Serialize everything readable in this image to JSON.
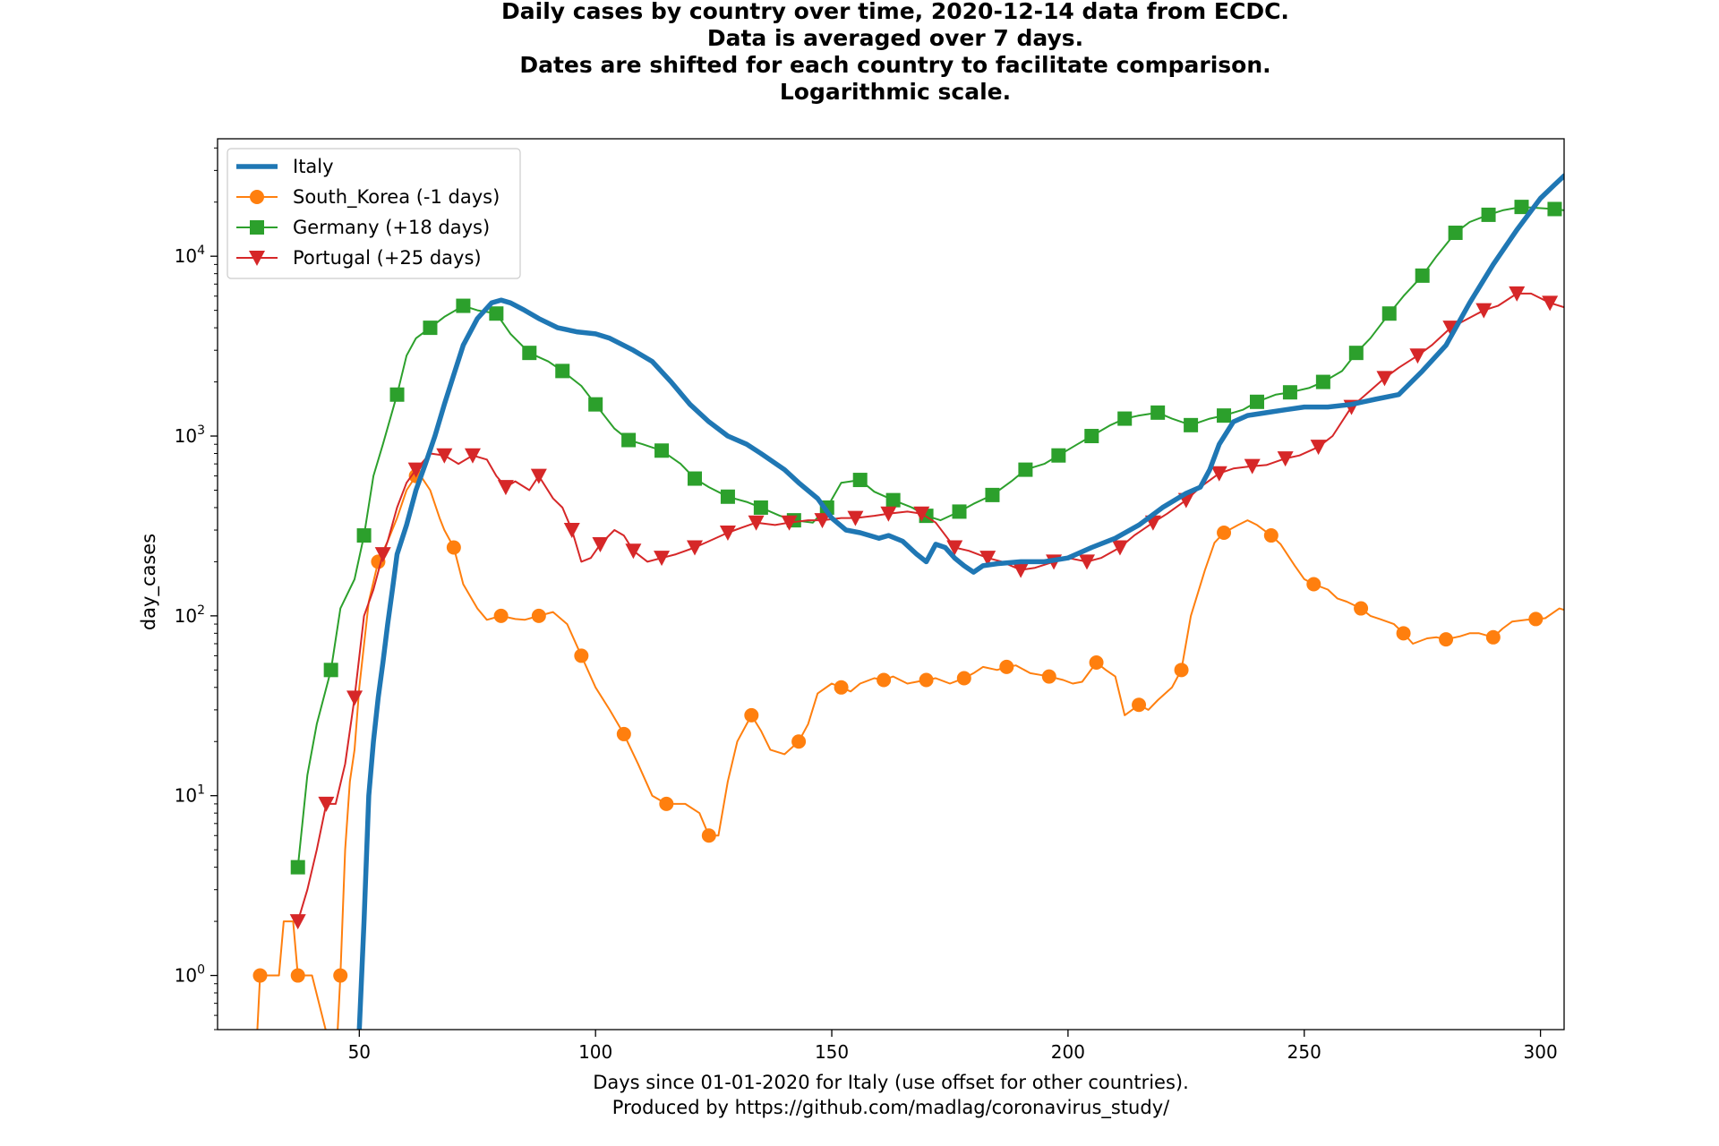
{
  "chart_data": {
    "type": "line",
    "title_lines": [
      "Daily cases by country over time, 2020-12-14 data from ECDC.",
      "Data is averaged over 7 days.",
      "Dates are shifted for each country to facilitate comparison.",
      "Logarithmic scale."
    ],
    "xlabel_lines": [
      "Days since 01-01-2020 for Italy (use offset for other countries).",
      "Produced by https://github.com/madlag/coronavirus_study/"
    ],
    "ylabel": "day_cases",
    "y_scale": "log",
    "xlim": [
      20,
      305
    ],
    "ylim": [
      0.5,
      45000
    ],
    "grid": false,
    "legend_position": "top-left",
    "x_ticks": [
      50,
      100,
      150,
      200,
      250,
      300
    ],
    "y_ticks": [
      {
        "value": 1,
        "base": "10",
        "exp": "0"
      },
      {
        "value": 10,
        "base": "10",
        "exp": "1"
      },
      {
        "value": 100,
        "base": "10",
        "exp": "2"
      },
      {
        "value": 1000,
        "base": "10",
        "exp": "3"
      },
      {
        "value": 10000,
        "base": "10",
        "exp": "4"
      }
    ],
    "series": [
      {
        "name": "Italy",
        "color": "#1f77b4",
        "marker": "none",
        "line_width": "thick",
        "x": [
          50,
          51,
          52,
          53,
          54,
          55,
          56,
          57,
          58,
          60,
          62,
          64,
          66,
          68,
          70,
          72,
          75,
          78,
          80,
          82,
          85,
          88,
          92,
          96,
          100,
          103,
          108,
          112,
          116,
          120,
          124,
          128,
          132,
          135,
          140,
          143,
          147,
          150,
          153,
          156,
          158,
          160,
          162,
          165,
          168,
          170,
          172,
          174,
          176,
          178,
          180,
          182,
          185,
          190,
          195,
          200,
          205,
          210,
          215,
          220,
          225,
          228,
          230,
          232,
          235,
          238,
          242,
          246,
          250,
          255,
          260,
          265,
          270,
          275,
          280,
          285,
          290,
          295,
          300,
          303,
          305
        ],
        "values": [
          0.5,
          2,
          10,
          20,
          35,
          55,
          90,
          140,
          220,
          320,
          500,
          700,
          1000,
          1500,
          2200,
          3200,
          4500,
          5500,
          5700,
          5500,
          5000,
          4500,
          4000,
          3800,
          3700,
          3500,
          3000,
          2600,
          2000,
          1500,
          1200,
          1000,
          900,
          800,
          650,
          550,
          450,
          350,
          300,
          290,
          280,
          270,
          280,
          260,
          220,
          200,
          250,
          240,
          210,
          190,
          175,
          190,
          195,
          200,
          200,
          210,
          240,
          270,
          320,
          400,
          480,
          520,
          650,
          900,
          1200,
          1300,
          1350,
          1400,
          1450,
          1450,
          1500,
          1600,
          1700,
          2300,
          3200,
          5500,
          9000,
          14000,
          21000,
          25000,
          28000
        ]
      },
      {
        "name": "South_Korea (-1 days)",
        "color": "#ff7f0e",
        "marker": "circle",
        "line_width": "thin",
        "x": [
          28,
          29,
          31,
          33,
          34,
          35,
          36,
          37,
          38,
          39,
          40,
          45,
          46,
          47,
          48,
          49,
          50,
          52,
          54,
          56,
          58,
          60,
          62,
          63,
          65,
          67,
          68,
          70,
          72,
          75,
          77,
          80,
          83,
          85,
          88,
          91,
          94,
          97,
          100,
          103,
          106,
          109,
          112,
          115,
          119,
          122,
          124,
          126,
          128,
          130,
          133,
          135,
          137,
          140,
          143,
          145,
          147,
          150,
          152,
          154,
          156,
          159,
          161,
          163,
          166,
          168,
          170,
          172,
          175,
          178,
          180,
          182,
          185,
          187,
          189,
          192,
          194,
          196,
          199,
          201,
          203,
          206,
          208,
          210,
          212,
          215,
          217,
          219,
          222,
          224,
          226,
          229,
          231,
          233,
          236,
          238,
          240,
          243,
          245,
          248,
          250,
          252,
          255,
          257,
          259,
          262,
          264,
          266,
          269,
          271,
          273,
          276,
          278,
          280,
          283,
          285,
          287,
          290,
          292,
          294,
          297,
          299,
          301,
          304,
          305
        ],
        "values": [
          0.3,
          1,
          1,
          1,
          2,
          2,
          2,
          1,
          1,
          1,
          1,
          0.3,
          1,
          5,
          12,
          18,
          40,
          120,
          200,
          260,
          350,
          500,
          600,
          600,
          500,
          350,
          300,
          240,
          150,
          110,
          95,
          100,
          96,
          95,
          100,
          105,
          90,
          60,
          40,
          30,
          22,
          15,
          10,
          9,
          9,
          8,
          6,
          6,
          12,
          20,
          28,
          23,
          18,
          17,
          20,
          25,
          37,
          42,
          40,
          38,
          42,
          45,
          44,
          46,
          42,
          43,
          44,
          45,
          42,
          45,
          48,
          52,
          50,
          52,
          53,
          48,
          47,
          46,
          44,
          42,
          43,
          55,
          50,
          46,
          28,
          32,
          30,
          34,
          40,
          50,
          100,
          180,
          255,
          290,
          320,
          340,
          320,
          280,
          250,
          190,
          160,
          150,
          140,
          125,
          120,
          110,
          100,
          96,
          90,
          80,
          70,
          75,
          76,
          74,
          77,
          80,
          80,
          76,
          85,
          93,
          95,
          96,
          97,
          110,
          108
        ]
      },
      {
        "name": "Germany (+18 days)",
        "color": "#2ca02c",
        "marker": "square",
        "line_width": "thin",
        "x": [
          37,
          39,
          41,
          44,
          46,
          49,
          51,
          53,
          55,
          58,
          60,
          62,
          65,
          68,
          72,
          75,
          79,
          82,
          86,
          90,
          93,
          97,
          100,
          104,
          107,
          110,
          114,
          118,
          121,
          124,
          128,
          132,
          135,
          139,
          142,
          146,
          149,
          152,
          156,
          159,
          163,
          167,
          170,
          173,
          177,
          180,
          184,
          188,
          191,
          195,
          198,
          202,
          205,
          209,
          212,
          215,
          219,
          222,
          226,
          230,
          233,
          237,
          240,
          244,
          247,
          251,
          254,
          258,
          261,
          264,
          268,
          271,
          275,
          278,
          282,
          285,
          289,
          292,
          296,
          300,
          303,
          305
        ],
        "values": [
          4,
          13,
          25,
          50,
          110,
          160,
          280,
          600,
          900,
          1700,
          2800,
          3500,
          4000,
          4600,
          5300,
          5000,
          4800,
          3700,
          2900,
          2600,
          2300,
          1900,
          1500,
          1100,
          950,
          900,
          830,
          700,
          580,
          520,
          460,
          430,
          400,
          360,
          340,
          330,
          400,
          550,
          570,
          490,
          440,
          400,
          360,
          340,
          380,
          420,
          470,
          560,
          650,
          700,
          780,
          900,
          1000,
          1150,
          1250,
          1300,
          1350,
          1250,
          1150,
          1250,
          1300,
          1400,
          1550,
          1700,
          1750,
          1850,
          2000,
          2300,
          2900,
          3500,
          4800,
          6000,
          7800,
          10000,
          13500,
          15500,
          17000,
          18000,
          18800,
          18500,
          18300,
          18000
        ]
      },
      {
        "name": "Portugal (+25 days)",
        "color": "#d62728",
        "marker": "triangle_down",
        "line_width": "thin",
        "x": [
          37,
          39,
          41,
          43,
          45,
          47,
          49,
          51,
          53,
          55,
          56,
          58,
          60,
          62,
          65,
          68,
          71,
          74,
          77,
          79,
          81,
          83,
          86,
          88,
          91,
          93,
          95,
          97,
          99,
          101,
          104,
          106,
          108,
          111,
          114,
          117,
          121,
          124,
          128,
          131,
          134,
          138,
          141,
          145,
          148,
          152,
          155,
          159,
          162,
          166,
          169,
          172,
          176,
          179,
          183,
          186,
          190,
          193,
          197,
          200,
          204,
          207,
          211,
          214,
          218,
          221,
          225,
          228,
          232,
          235,
          239,
          242,
          246,
          249,
          253,
          256,
          260,
          263,
          267,
          270,
          274,
          277,
          281,
          284,
          288,
          291,
          295,
          298,
          302,
          305
        ],
        "values": [
          2,
          3,
          5,
          9,
          9,
          15,
          35,
          100,
          140,
          220,
          260,
          400,
          550,
          650,
          800,
          780,
          700,
          780,
          740,
          600,
          520,
          560,
          500,
          600,
          450,
          400,
          300,
          200,
          210,
          250,
          300,
          280,
          230,
          200,
          210,
          220,
          240,
          260,
          290,
          310,
          330,
          320,
          330,
          340,
          340,
          350,
          350,
          360,
          370,
          380,
          370,
          330,
          240,
          230,
          210,
          200,
          180,
          185,
          200,
          210,
          200,
          210,
          240,
          280,
          330,
          370,
          440,
          520,
          620,
          660,
          680,
          690,
          750,
          780,
          870,
          1000,
          1450,
          1700,
          2100,
          2400,
          2800,
          3200,
          4000,
          4400,
          5000,
          5300,
          6200,
          6200,
          5500,
          5200
        ]
      }
    ]
  }
}
